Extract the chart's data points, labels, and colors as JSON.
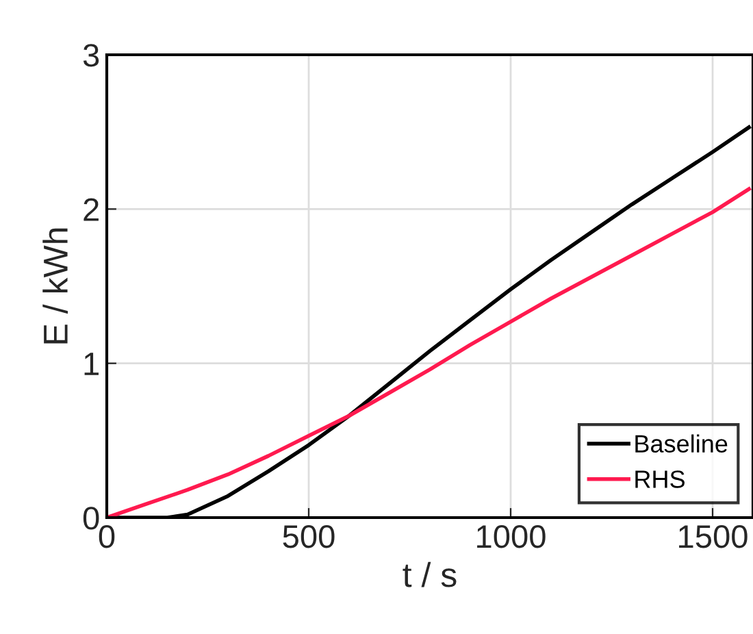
{
  "chart_data": {
    "type": "line",
    "xlabel": "t / s",
    "ylabel": "E / kWh",
    "xlim": [
      0,
      1600
    ],
    "ylim": [
      0,
      3
    ],
    "xticks": [
      0,
      500,
      1000,
      1500
    ],
    "yticks": [
      0,
      1,
      2,
      3
    ],
    "grid": true,
    "legend": "bottom right",
    "line_style": "solid",
    "series": [
      {
        "name": "Baseline",
        "color": "#000000",
        "x": [
          0,
          100,
          150,
          200,
          250,
          300,
          400,
          500,
          600,
          700,
          800,
          900,
          1000,
          1100,
          1200,
          1300,
          1400,
          1500,
          1590
        ],
        "values": [
          0,
          0,
          0,
          0.02,
          0.08,
          0.14,
          0.3,
          0.47,
          0.66,
          0.87,
          1.08,
          1.28,
          1.48,
          1.67,
          1.85,
          2.03,
          2.2,
          2.37,
          2.53
        ]
      },
      {
        "name": "RHS",
        "color": "#ff1a4f",
        "x": [
          0,
          100,
          200,
          300,
          400,
          500,
          600,
          700,
          800,
          900,
          1000,
          1100,
          1200,
          1300,
          1400,
          1500,
          1590
        ],
        "values": [
          0,
          0.09,
          0.18,
          0.28,
          0.4,
          0.53,
          0.66,
          0.81,
          0.96,
          1.12,
          1.27,
          1.42,
          1.56,
          1.7,
          1.84,
          1.98,
          2.13
        ]
      }
    ]
  }
}
